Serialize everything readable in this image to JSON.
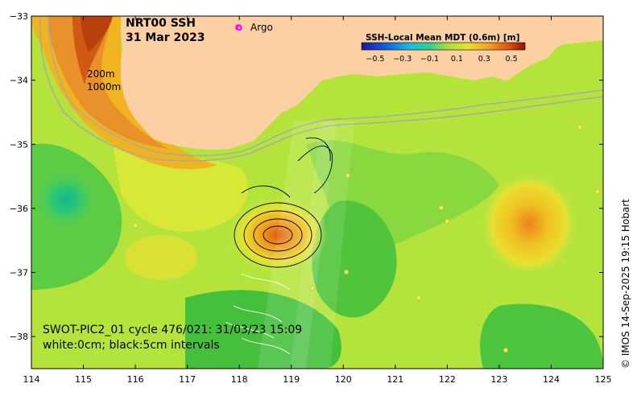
{
  "title": {
    "line1": "NRT00 SSH",
    "line2": "31 Mar 2023"
  },
  "legend": {
    "argo_marker": "o",
    "argo_label": "Argo",
    "argo_color": "#ff00ff"
  },
  "bathymetry_labels": [
    "200m",
    "1000m"
  ],
  "colorbar": {
    "title": "SSH-Local Mean MDT (0.6m) [m]",
    "ticks": [
      "−0.5",
      "−0.3",
      "−0.1",
      "0.1",
      "0.3",
      "0.5"
    ],
    "range": [
      -0.6,
      0.6
    ]
  },
  "swot": {
    "line1": "SWOT-PIC2_01 cycle 476/021: 31/03/23 15:09",
    "line2": "white:0cm; black:5cm intervals"
  },
  "axes": {
    "x_ticks": [
      "114",
      "115",
      "116",
      "117",
      "118",
      "119",
      "120",
      "121",
      "122",
      "123",
      "124",
      "125"
    ],
    "y_ticks": [
      "−33",
      "−34",
      "−35",
      "−36",
      "−37",
      "−38"
    ],
    "lon_range": [
      114,
      125
    ],
    "lat_range": [
      -38.5,
      -33
    ]
  },
  "copyright": "© IMOS 14-Sep-2025 19:15 Hobart",
  "colors": {
    "land": "#fcd0a2",
    "sea_base": "#b8e83a",
    "sea_green": "#36c23c",
    "high": "#d45a10",
    "low": "#10b888"
  }
}
